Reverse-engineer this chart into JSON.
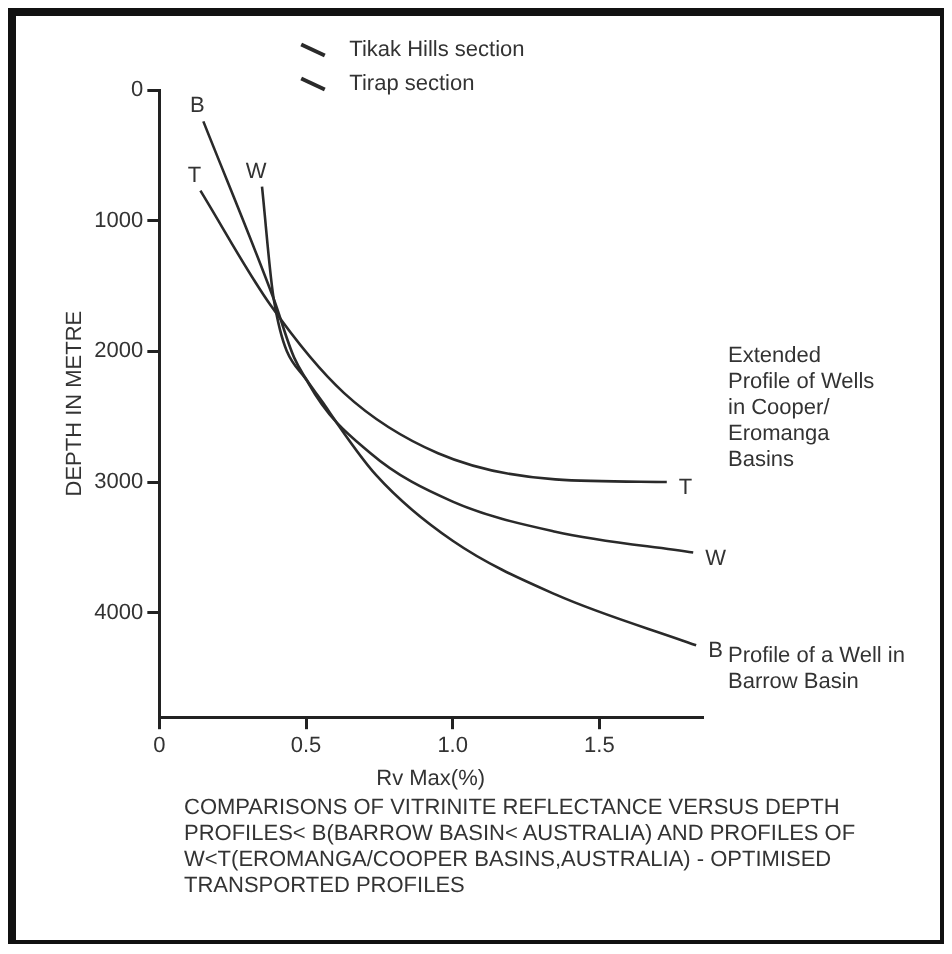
{
  "chart_data": {
    "type": "line",
    "xlabel": "Rv Max(%)",
    "ylabel": "DEPTH IN METRE",
    "xlim": [
      0,
      1.85
    ],
    "ylim": [
      4800,
      0
    ],
    "xticks": [
      0,
      {
        "value": 0.5,
        "label": "0.5"
      },
      {
        "value": 1,
        "label": "1.0"
      },
      {
        "value": 1.5,
        "label": "1.5"
      }
    ],
    "yticks": [
      0,
      1000,
      2000,
      3000,
      4000
    ],
    "marker": "none",
    "legend": "top",
    "series": [
      {
        "name": "B",
        "color": "#2a2a2a",
        "x": [
          0.15,
          0.39,
          0.46,
          0.56,
          0.74,
          1.0,
          1.35,
          1.83
        ],
        "values": [
          240,
          1600,
          2050,
          2400,
          2950,
          3450,
          3860,
          4250
        ]
      },
      {
        "name": "T",
        "color": "#2a2a2a",
        "x": [
          0.14,
          0.38,
          0.63,
          0.95,
          1.35,
          1.73
        ],
        "values": [
          770,
          1650,
          2320,
          2780,
          2980,
          3000
        ]
      },
      {
        "name": "W",
        "color": "#2a2a2a",
        "x": [
          0.35,
          0.39,
          0.51,
          0.72,
          1.0,
          1.35,
          1.82
        ],
        "values": [
          740,
          1600,
          2250,
          2780,
          3150,
          3380,
          3540
        ]
      },
      {
        "name": "Tikak Hills section",
        "color": "#2a2a2a"
      },
      {
        "name": "Tirap section",
        "color": "#2a2a2a"
      }
    ],
    "annotations": [
      "Extended Profile of Wells in Cooper/ Eromanga Basins",
      "Profile of a Well in Barrow Basin",
      "COMPARISONS OF VITRINITE REFLECTANCE VERSUS DEPTH PROFILES< B(BARROW BASIN< AUSTRALIA) AND PROFILES OF W<T(EROMANGA/COOPER BASINS,AUSTRALIA) - OPTIMISED TRANSPORTED PROFILES"
    ]
  }
}
